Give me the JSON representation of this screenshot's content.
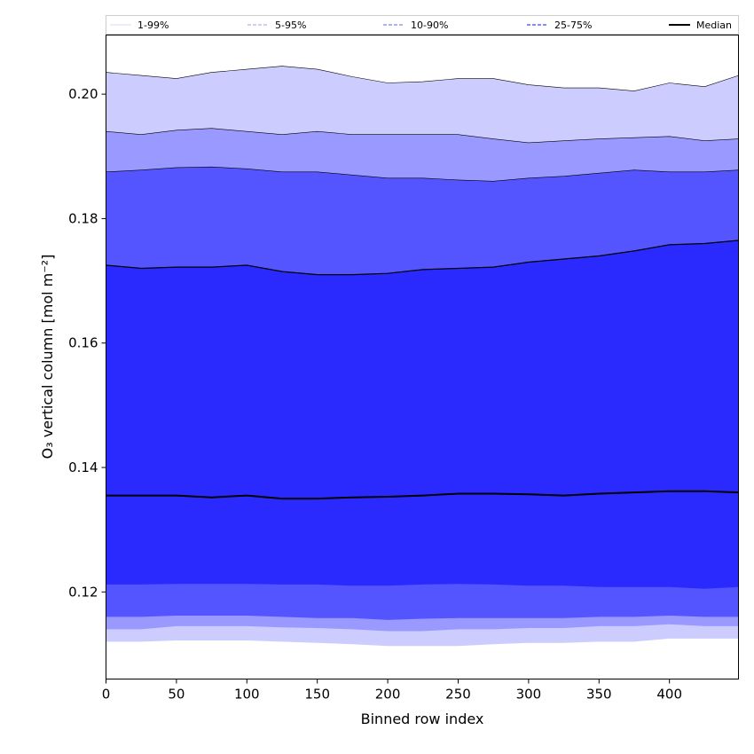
{
  "chart_data": {
    "type": "area",
    "xlabel": "Binned row index",
    "ylabel": "O₃ vertical column [mol m⁻²]",
    "xlim": [
      0,
      449
    ],
    "ylim": [
      0.106,
      0.2095
    ],
    "x_ticks": [
      0,
      50,
      100,
      150,
      200,
      250,
      300,
      350,
      400
    ],
    "y_ticks": [
      0.12,
      0.14,
      0.16,
      0.18,
      0.2
    ],
    "y_tick_labels": [
      "0.12",
      "0.14",
      "0.16",
      "0.18",
      "0.20"
    ],
    "legend_position": "top (horizontal strip)",
    "grid": false,
    "x": [
      0,
      25,
      50,
      75,
      100,
      125,
      150,
      175,
      200,
      225,
      250,
      275,
      300,
      325,
      350,
      375,
      400,
      425,
      449
    ],
    "bands": [
      {
        "name": "1-99%",
        "color": "#ccccff",
        "line_color": "#000000",
        "line_style": "solid",
        "lower": [
          0.112,
          0.112,
          0.1122,
          0.1122,
          0.1122,
          0.112,
          0.1118,
          0.1116,
          0.1113,
          0.1113,
          0.1113,
          0.1116,
          0.1118,
          0.1118,
          0.112,
          0.112,
          0.1125,
          0.1125,
          0.1125
        ],
        "upper": [
          0.2035,
          0.203,
          0.2025,
          0.2035,
          0.204,
          0.2045,
          0.204,
          0.2028,
          0.2018,
          0.202,
          0.2025,
          0.2025,
          0.2015,
          0.201,
          0.201,
          0.2005,
          0.2018,
          0.2012,
          0.203
        ]
      },
      {
        "name": "5-95%",
        "color": "#9999ff",
        "line_color": "#000000",
        "line_style": "solid",
        "lower": [
          0.114,
          0.114,
          0.1145,
          0.1145,
          0.1145,
          0.1143,
          0.1142,
          0.114,
          0.1137,
          0.1137,
          0.114,
          0.114,
          0.1142,
          0.1142,
          0.1145,
          0.1145,
          0.1148,
          0.1145,
          0.1145
        ],
        "upper": [
          0.194,
          0.1935,
          0.1942,
          0.1945,
          0.194,
          0.1935,
          0.194,
          0.1935,
          0.1935,
          0.1935,
          0.1935,
          0.1928,
          0.1922,
          0.1925,
          0.1928,
          0.193,
          0.1932,
          0.1925,
          0.1928
        ]
      },
      {
        "name": "10-90%",
        "color": "#5555ff",
        "line_color": "#000000",
        "line_style": "solid",
        "lower": [
          0.116,
          0.116,
          0.1162,
          0.1162,
          0.1162,
          0.116,
          0.1158,
          0.1158,
          0.1155,
          0.1157,
          0.1158,
          0.1158,
          0.1158,
          0.1158,
          0.116,
          0.116,
          0.1162,
          0.116,
          0.116
        ],
        "upper": [
          0.1875,
          0.1878,
          0.1882,
          0.1883,
          0.188,
          0.1875,
          0.1875,
          0.187,
          0.1865,
          0.1865,
          0.1862,
          0.186,
          0.1865,
          0.1868,
          0.1873,
          0.1878,
          0.1875,
          0.1875,
          0.1878
        ]
      },
      {
        "name": "25-75%",
        "color": "#2a2aff",
        "line_color": "#000000",
        "line_style": "solid",
        "lower": [
          0.1212,
          0.1212,
          0.1213,
          0.1213,
          0.1213,
          0.1212,
          0.1212,
          0.121,
          0.121,
          0.1212,
          0.1213,
          0.1212,
          0.121,
          0.121,
          0.1208,
          0.1208,
          0.1208,
          0.1205,
          0.1208
        ],
        "upper": [
          0.1725,
          0.172,
          0.1722,
          0.1722,
          0.1725,
          0.1715,
          0.171,
          0.171,
          0.1712,
          0.1718,
          0.172,
          0.1722,
          0.173,
          0.1735,
          0.174,
          0.1748,
          0.1758,
          0.176,
          0.1765
        ]
      }
    ],
    "median": {
      "name": "Median",
      "color": "#000000",
      "values": [
        0.1355,
        0.1355,
        0.1355,
        0.1352,
        0.1355,
        0.135,
        0.135,
        0.1352,
        0.1353,
        0.1355,
        0.1358,
        0.1358,
        0.1357,
        0.1355,
        0.1358,
        0.136,
        0.1362,
        0.1362,
        0.136
      ]
    },
    "legend": [
      {
        "label": "1-99%",
        "color": "#e0e0ff",
        "style": "solid"
      },
      {
        "label": "5-95%",
        "color": "#b0b0f0",
        "style": "dashed"
      },
      {
        "label": "10-90%",
        "color": "#8080ff",
        "style": "dashed"
      },
      {
        "label": "25-75%",
        "color": "#4444ff",
        "style": "dashed"
      },
      {
        "label": "Median",
        "color": "#000000",
        "style": "solid"
      }
    ]
  }
}
